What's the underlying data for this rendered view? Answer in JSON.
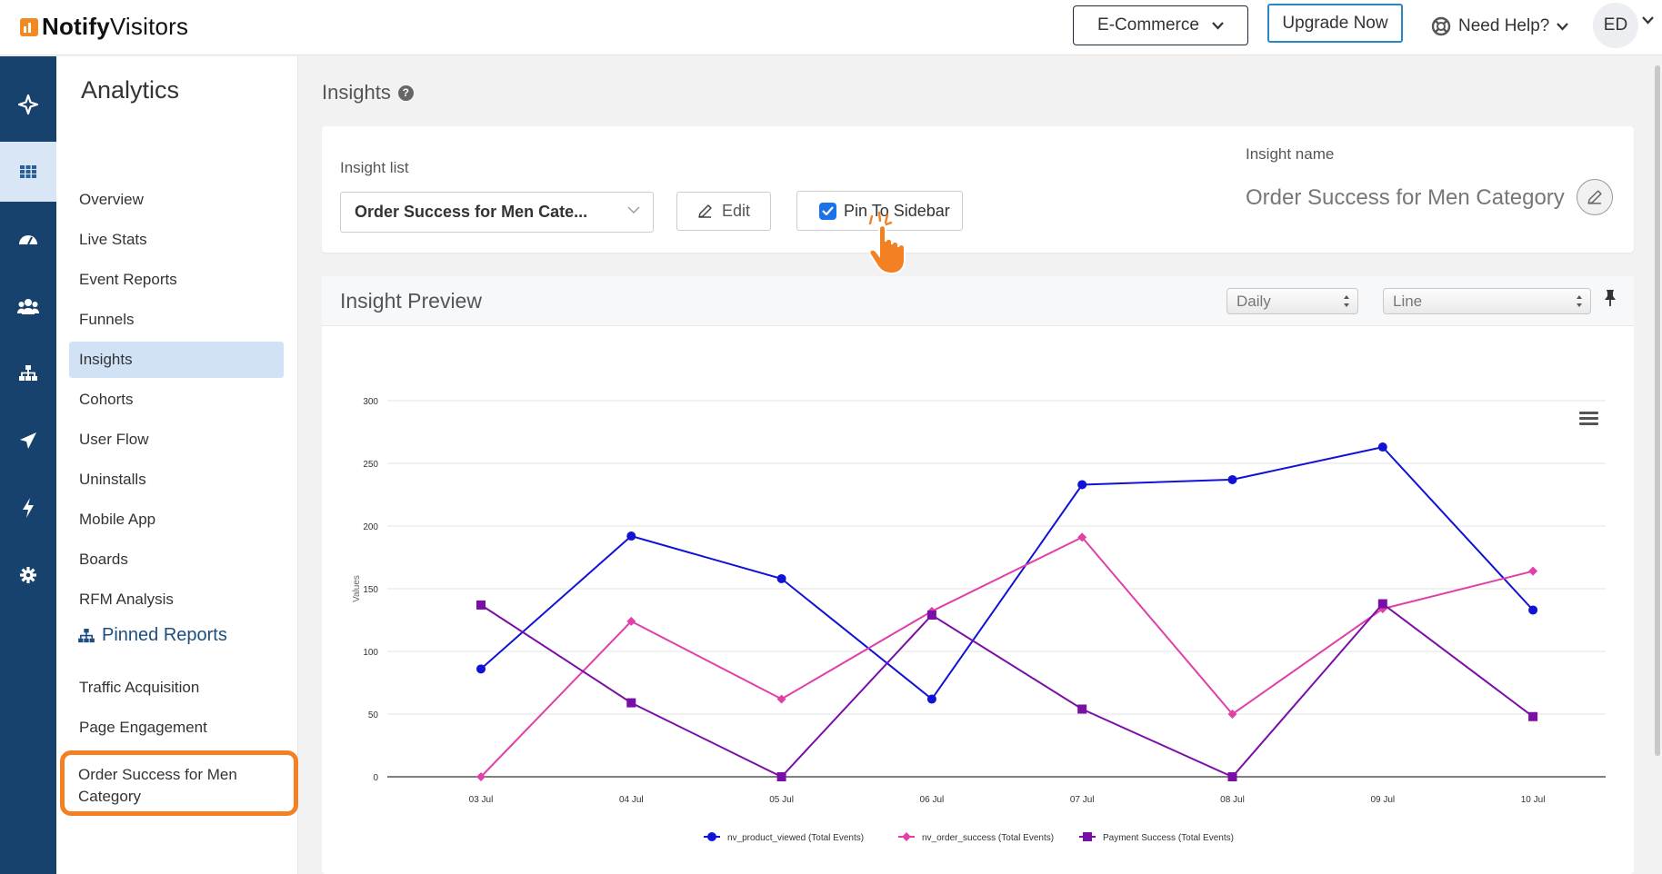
{
  "header": {
    "logo_bold": "Notify",
    "logo_rest": "Visitors",
    "workspace_label": "E-Commerce",
    "upgrade_label": "Upgrade Now",
    "help_label": "Need Help?",
    "avatar_initials": "ED"
  },
  "rail": {
    "icons": [
      "sparkle-icon",
      "grid-icon",
      "dashboard-icon",
      "users-icon",
      "sitemap-icon",
      "send-icon",
      "bolt-icon",
      "gear-icon"
    ],
    "active_index": 1
  },
  "sidebar": {
    "title": "Analytics",
    "items": [
      {
        "label": "Overview"
      },
      {
        "label": "Live Stats"
      },
      {
        "label": "Event Reports"
      },
      {
        "label": "Funnels"
      },
      {
        "label": "Insights",
        "active": true
      },
      {
        "label": "Cohorts"
      },
      {
        "label": "User Flow"
      },
      {
        "label": "Uninstalls"
      },
      {
        "label": "Mobile App"
      },
      {
        "label": "Boards"
      },
      {
        "label": "RFM Analysis"
      }
    ],
    "pinned_title": "Pinned Reports",
    "pinned_items": [
      {
        "label": "Traffic Acquisition"
      },
      {
        "label": "Page Engagement"
      },
      {
        "label": "Order Success for Men Category",
        "highlighted": true
      }
    ]
  },
  "main": {
    "page_title": "Insights",
    "insight_list_label": "Insight list",
    "insight_select_value": "Order Success for Men Cate...",
    "edit_label": "Edit",
    "pin_label": "Pin To Sidebar",
    "pin_checked": true,
    "insight_name_label": "Insight name",
    "insight_name_value": "Order Success for Men Category",
    "preview_title": "Insight Preview",
    "interval_value": "Daily",
    "chart_type_value": "Line"
  },
  "chart_data": {
    "type": "line",
    "categories": [
      "03 Jul",
      "04 Jul",
      "05 Jul",
      "06 Jul",
      "07 Jul",
      "08 Jul",
      "09 Jul",
      "10 Jul"
    ],
    "ylabel": "Values",
    "ylim": [
      0,
      300
    ],
    "yticks": [
      0,
      50,
      100,
      150,
      200,
      250,
      300
    ],
    "grid": true,
    "legend_position": "bottom",
    "series": [
      {
        "name": "nv_product_viewed (Total Events)",
        "color": "#1212d6",
        "marker": "circle",
        "values": [
          86,
          192,
          158,
          62,
          233,
          237,
          263,
          133
        ]
      },
      {
        "name": "nv_order_success (Total Events)",
        "color": "#e040a8",
        "marker": "diamond",
        "values": [
          0,
          124,
          62,
          132,
          191,
          50,
          134,
          164
        ]
      },
      {
        "name": "Payment Success (Total Events)",
        "color": "#7a0fa8",
        "marker": "square",
        "values": [
          137,
          59,
          0,
          129,
          54,
          0,
          138,
          48
        ]
      }
    ]
  }
}
